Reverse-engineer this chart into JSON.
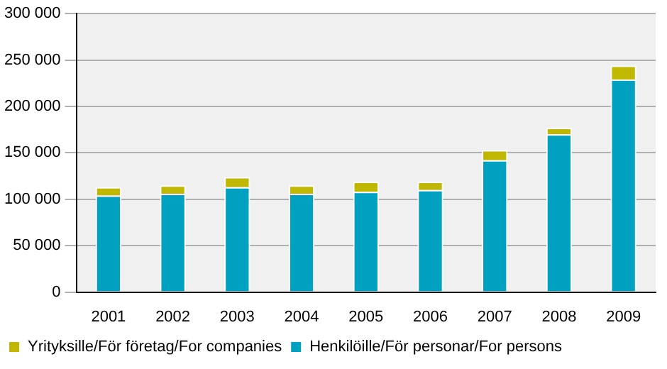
{
  "chart_data": {
    "type": "bar",
    "stacked": true,
    "categories": [
      "2001",
      "2002",
      "2003",
      "2004",
      "2005",
      "2006",
      "2007",
      "2008",
      "2009"
    ],
    "series": [
      {
        "name": "Henkilöille/För personar/For persons",
        "color": "#00a0c0",
        "values": [
          104000,
          106000,
          113000,
          106000,
          108000,
          110000,
          142000,
          170000,
          229000
        ]
      },
      {
        "name": "Yrityksille/För företag/For companies",
        "color": "#c0b800",
        "values": [
          9000,
          9000,
          11000,
          9000,
          11000,
          9000,
          11000,
          7000,
          15000
        ]
      }
    ],
    "ylim": [
      0,
      300000
    ],
    "yticks": [
      {
        "value": 0,
        "label": "0"
      },
      {
        "value": 50000,
        "label": "50 000"
      },
      {
        "value": 100000,
        "label": "100 000"
      },
      {
        "value": 150000,
        "label": "150 000"
      },
      {
        "value": 200000,
        "label": "200 000"
      },
      {
        "value": 250000,
        "label": "250 000"
      },
      {
        "value": 300000,
        "label": "300 000"
      }
    ],
    "grid": "y",
    "legend": "bottom"
  }
}
